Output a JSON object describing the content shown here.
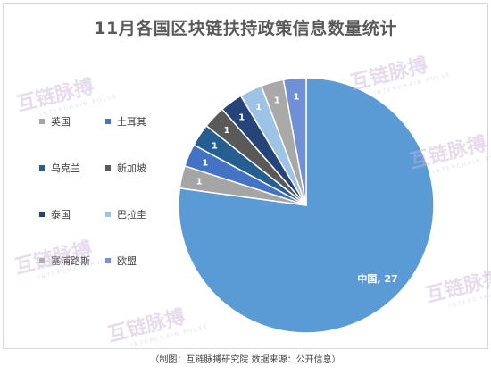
{
  "chart_data": {
    "type": "pie",
    "title": "11月各国区块链扶持政策信息数量统计",
    "categories": [
      "中国",
      "英国",
      "土耳其",
      "乌克兰",
      "新加坡",
      "泰国",
      "巴拉圭",
      "塞浦路斯",
      "欧盟"
    ],
    "values": [
      27,
      1,
      1,
      1,
      1,
      1,
      1,
      1,
      1
    ],
    "colors": [
      "#5b9bd5",
      "#a5a5a5",
      "#4472c4",
      "#255e91",
      "#595959",
      "#264478",
      "#9dc3e6",
      "#a9a9a9",
      "#6f8fd6"
    ],
    "data_labels": [
      "中国, 27",
      "1",
      "1",
      "1",
      "1",
      "1",
      "1",
      "1",
      "1"
    ],
    "legend_position": "left"
  },
  "caption": "（制图：互链脉搏研究院 数据来源：公开信息）",
  "watermark": {
    "text": "互链脉搏",
    "subtext": "INTERCHAIN PULSE"
  }
}
